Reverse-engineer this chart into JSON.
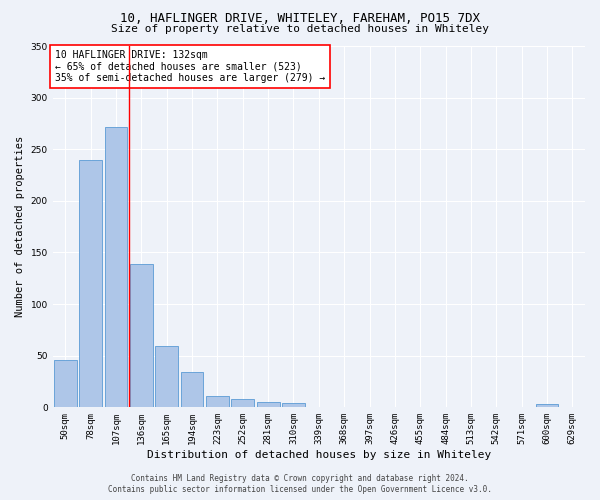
{
  "title1": "10, HAFLINGER DRIVE, WHITELEY, FAREHAM, PO15 7DX",
  "title2": "Size of property relative to detached houses in Whiteley",
  "xlabel": "Distribution of detached houses by size in Whiteley",
  "ylabel": "Number of detached properties",
  "bar_labels": [
    "50sqm",
    "78sqm",
    "107sqm",
    "136sqm",
    "165sqm",
    "194sqm",
    "223sqm",
    "252sqm",
    "281sqm",
    "310sqm",
    "339sqm",
    "368sqm",
    "397sqm",
    "426sqm",
    "455sqm",
    "484sqm",
    "513sqm",
    "542sqm",
    "571sqm",
    "600sqm",
    "629sqm"
  ],
  "bar_values": [
    46,
    240,
    272,
    139,
    59,
    34,
    11,
    8,
    5,
    4,
    0,
    0,
    0,
    0,
    0,
    0,
    0,
    0,
    0,
    3,
    0
  ],
  "bar_color": "#aec6e8",
  "bar_edge_color": "#5b9bd5",
  "redline_x": 2.5,
  "annotation_title": "10 HAFLINGER DRIVE: 132sqm",
  "annotation_line1": "← 65% of detached houses are smaller (523)",
  "annotation_line2": "35% of semi-detached houses are larger (279) →",
  "footnote1": "Contains HM Land Registry data © Crown copyright and database right 2024.",
  "footnote2": "Contains public sector information licensed under the Open Government Licence v3.0.",
  "ylim": [
    0,
    350
  ],
  "bg_color": "#eef2f9",
  "grid_color": "#ffffff",
  "title_fontsize": 9,
  "subtitle_fontsize": 8,
  "axis_label_fontsize": 7.5,
  "tick_fontsize": 6.5,
  "annotation_fontsize": 7,
  "footnote_fontsize": 5.5
}
